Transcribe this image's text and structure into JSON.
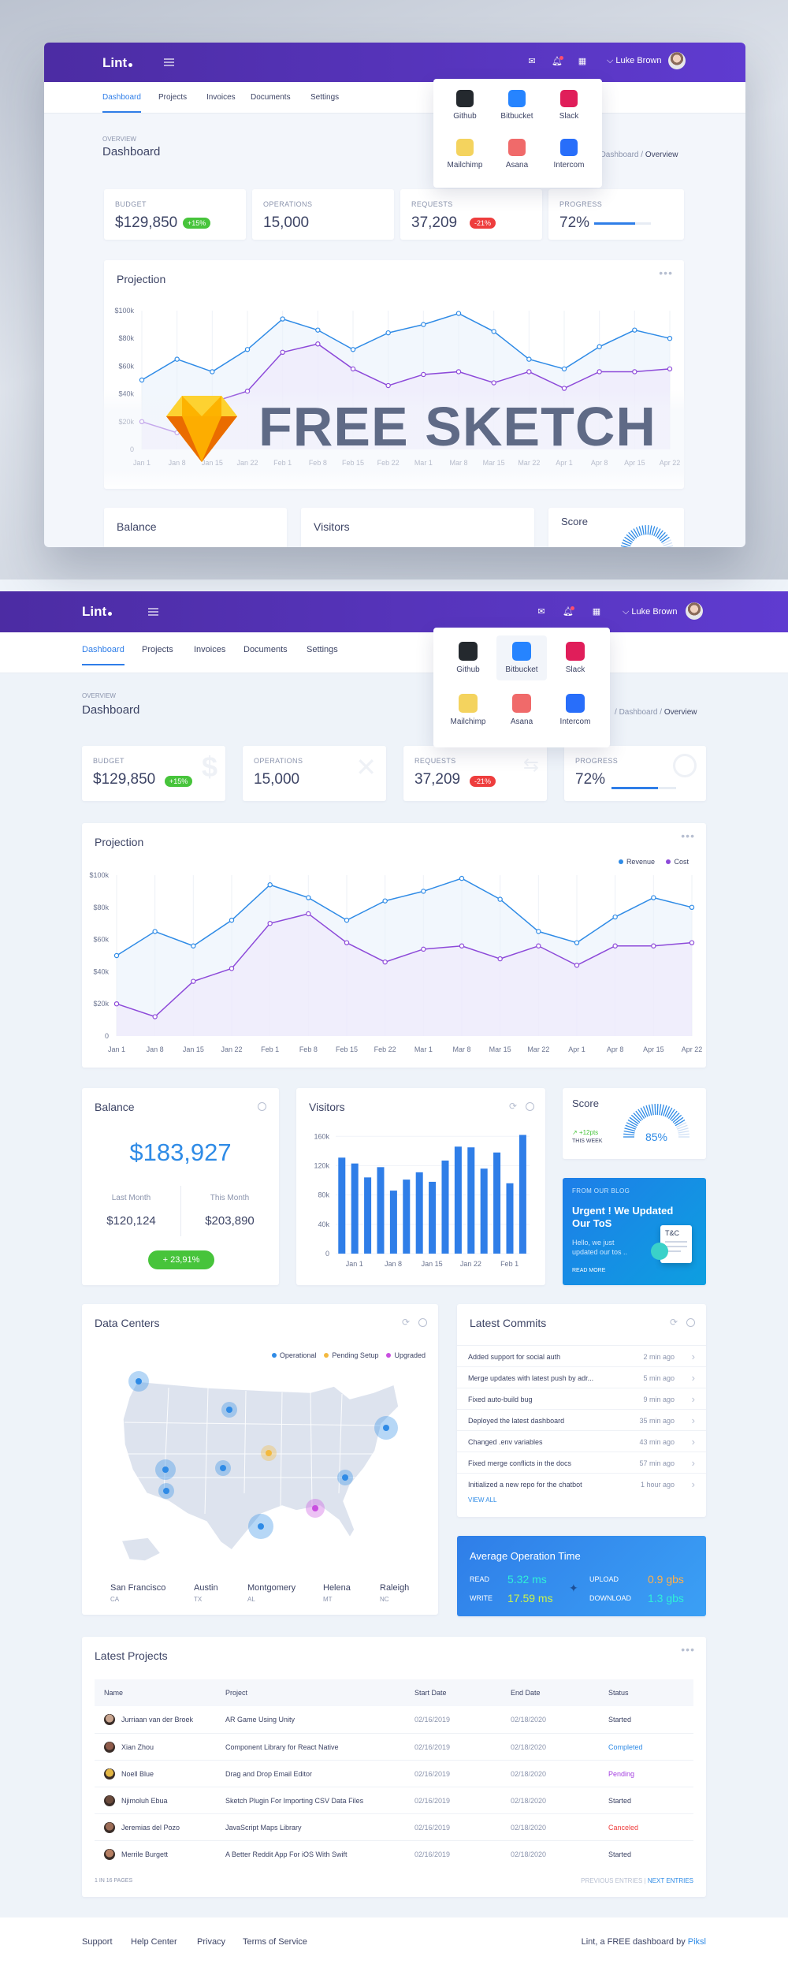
{
  "app": {
    "logo": "Lint",
    "user_name": "Luke Brown"
  },
  "nav": {
    "tabs": [
      "Dashboard",
      "Projects",
      "Invoices",
      "Documents",
      "Settings"
    ]
  },
  "apps": [
    {
      "name": "Github",
      "icon": "github-icon",
      "color": "#24292e"
    },
    {
      "name": "Bitbucket",
      "icon": "bitbucket-icon",
      "color": "#2684ff"
    },
    {
      "name": "Slack",
      "icon": "slack-icon",
      "color": "#e01e5a"
    },
    {
      "name": "Mailchimp",
      "icon": "mailchimp-icon",
      "color": "#f4d35e"
    },
    {
      "name": "Asana",
      "icon": "asana-icon",
      "color": "#f06a6a"
    },
    {
      "name": "Intercom",
      "icon": "intercom-icon",
      "color": "#286efa"
    }
  ],
  "page": {
    "overview": "OVERVIEW",
    "title": "Dashboard",
    "breadcrumb_parent": "Dashboard",
    "breadcrumb_sep": "/",
    "breadcrumb_current": "Overview"
  },
  "hero": {
    "text": "FREE SKETCH"
  },
  "kpis": [
    {
      "label": "BUDGET",
      "value": "$129,850",
      "badge": "+15%",
      "badge_color": "#47c43b",
      "icon": "dollar-icon"
    },
    {
      "label": "OPERATIONS",
      "value": "15,000",
      "icon": "tools-icon"
    },
    {
      "label": "REQUESTS",
      "value": "37,209",
      "badge": "-21%",
      "badge_color": "#ee3d3d",
      "icon": "arrows-icon"
    },
    {
      "label": "PROGRESS",
      "value": "72%",
      "progress": 0.72,
      "icon": "clock-icon"
    }
  ],
  "projection": {
    "title": "Projection",
    "more": "•••",
    "legend": [
      {
        "name": "Revenue",
        "color": "#2f8be6"
      },
      {
        "name": "Cost",
        "color": "#8d4ad9"
      }
    ]
  },
  "chart_data": [
    {
      "type": "line",
      "title": "Projection",
      "x": [
        "Jan 1",
        "Jan 8",
        "Jan 15",
        "Jan 22",
        "Feb 1",
        "Feb 8",
        "Feb 15",
        "Feb 22",
        "Mar 1",
        "Mar 8",
        "Mar 15",
        "Mar 22",
        "Apr 1",
        "Apr 8",
        "Apr 15",
        "Apr 22"
      ],
      "series": [
        {
          "name": "Revenue",
          "values": [
            50000,
            65000,
            56000,
            72000,
            94000,
            86000,
            72000,
            84000,
            90000,
            98000,
            85000,
            65000,
            58000,
            74000,
            86000,
            80000
          ]
        },
        {
          "name": "Cost",
          "values": [
            20000,
            12000,
            34000,
            42000,
            70000,
            76000,
            58000,
            46000,
            54000,
            56000,
            48000,
            56000,
            44000,
            56000,
            56000,
            58000
          ]
        }
      ],
      "y_ticks": [
        "0",
        "$20k",
        "$40k",
        "$60k",
        "$80k",
        "$100k"
      ],
      "ylim": [
        0,
        100000
      ]
    },
    {
      "type": "bar",
      "title": "Visitors",
      "values": [
        131000,
        123000,
        104000,
        118000,
        86000,
        101000,
        111000,
        98000,
        127000,
        146000,
        145000,
        116000,
        138000,
        96000,
        162000
      ],
      "x_ticks": [
        "Jan 1",
        "Jan 8",
        "Jan 15",
        "Jan 22",
        "Feb 1"
      ],
      "y_ticks": [
        "0",
        "40k",
        "80k",
        "120k",
        "160k"
      ],
      "ylim": [
        0,
        170000
      ]
    }
  ],
  "balance": {
    "title": "Balance",
    "amount": "$183,927",
    "last_label": "Last Month",
    "last_value": "$120,124",
    "this_label": "This Month",
    "this_value": "$203,890",
    "change": "+ 23,91%"
  },
  "visitors": {
    "title": "Visitors"
  },
  "score": {
    "title": "Score",
    "delta": "+12pts",
    "period": "THIS WEEK",
    "value": "85%",
    "fraction": 0.85
  },
  "blog": {
    "kicker": "FROM OUR BLOG",
    "title": "Urgent ! We Updated Our ToS",
    "excerpt": "Hello, we just updated our tos ..",
    "cta": "READ MORE",
    "doc_label": "T&C"
  },
  "datacenters": {
    "title": "Data Centers",
    "legend": [
      {
        "name": "Operational",
        "color": "#2f8be6"
      },
      {
        "name": "Pending Setup",
        "color": "#f3b93f"
      },
      {
        "name": "Upgraded",
        "color": "#c94fe0"
      }
    ],
    "cities": [
      {
        "name": "San Francisco",
        "state": "CA"
      },
      {
        "name": "Austin",
        "state": "TX"
      },
      {
        "name": "Montgomery",
        "state": "AL"
      },
      {
        "name": "Helena",
        "state": "MT"
      },
      {
        "name": "Raleigh",
        "state": "NC"
      }
    ]
  },
  "commits": {
    "title": "Latest Commits",
    "view_all": "VIEW ALL",
    "items": [
      {
        "msg": "Added support for social auth",
        "time": "2 min ago"
      },
      {
        "msg": "Merge updates with latest push by adr...",
        "time": "5 min ago"
      },
      {
        "msg": "Fixed auto-build bug",
        "time": "9 min ago"
      },
      {
        "msg": "Deployed the latest dashboard",
        "time": "35 min ago"
      },
      {
        "msg": "Changed .env variables",
        "time": "43 min ago"
      },
      {
        "msg": "Fixed merge conflicts in the docs",
        "time": "57 min ago"
      },
      {
        "msg": "Initialized a new repo for the chatbot",
        "time": "1 hour ago"
      }
    ]
  },
  "avgop": {
    "title": "Average Operation Time",
    "read_label": "READ",
    "read_value": "5.32 ms",
    "write_label": "WRITE",
    "write_value": "17.59 ms",
    "upload_label": "UPLOAD",
    "upload_value": "0.9 gbs",
    "download_label": "DOWNLOAD",
    "download_value": "1.3 gbs"
  },
  "projects": {
    "title": "Latest Projects",
    "more": "•••",
    "columns": [
      "Name",
      "Project",
      "Start Date",
      "End Date",
      "Status"
    ],
    "rows": [
      {
        "name": "Jurriaan van der Broek",
        "project": "AR Game Using Unity",
        "start": "02/16/2019",
        "end": "02/18/2020",
        "status": "Started",
        "status_color": "#3d4465",
        "avatar": "#c9a58f"
      },
      {
        "name": "Xian Zhou",
        "project": "Component Library for React Native",
        "start": "02/16/2019",
        "end": "02/18/2020",
        "status": "Completed",
        "status_color": "#2f8be6",
        "avatar": "#8f5b4a"
      },
      {
        "name": "Noell Blue",
        "project": "Drag and Drop Email Editor",
        "start": "02/16/2019",
        "end": "02/18/2020",
        "status": "Pending",
        "status_color": "#a43fe0",
        "avatar": "#e3b643"
      },
      {
        "name": "Njimoluh Ebua",
        "project": "Sketch Plugin For Importing CSV Data Files",
        "start": "02/16/2019",
        "end": "02/18/2020",
        "status": "Started",
        "status_color": "#3d4465",
        "avatar": "#6b4b3c"
      },
      {
        "name": "Jeremias del Pozo",
        "project": "JavaScript Maps Library",
        "start": "02/16/2019",
        "end": "02/18/2020",
        "status": "Canceled",
        "status_color": "#ee3d3d",
        "avatar": "#9c6d57"
      },
      {
        "name": "Merrile Burgett",
        "project": "A Better Reddit App For iOS With Swift",
        "start": "02/16/2019",
        "end": "02/18/2020",
        "status": "Started",
        "status_color": "#3d4465",
        "avatar": "#b57e62"
      }
    ],
    "pagination_info": "1 IN 16 PAGES",
    "prev": "PREVIOUS ENTRIES",
    "sep": "|",
    "next": "NEXT ENTRIES"
  },
  "footer": {
    "links": [
      "Support",
      "Help Center",
      "Privacy",
      "Terms of Service"
    ],
    "credit_prefix": "Lint, a FREE dashboard by",
    "credit_brand": "Piksl"
  }
}
